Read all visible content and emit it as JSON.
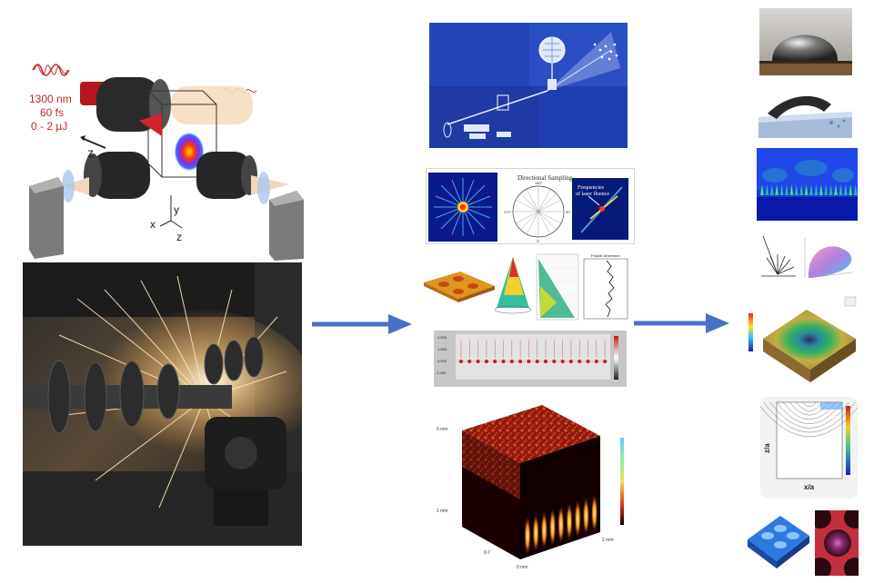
{
  "setup": {
    "laser_wavelength": "1300 nm",
    "pulse_duration": "60 fs",
    "pulse_energy": "0 - 2 µJ",
    "axis_z": "z",
    "axis_x": "x",
    "axis_y": "y",
    "axis_z2": "z"
  },
  "sampling": {
    "title": "Directional Sampling",
    "label_top": "180°",
    "label_left": "270°",
    "label_right": "90°",
    "label_bottom": "0°",
    "right_title_line1": "Frequencies",
    "right_title_line2": "of laser fluence"
  },
  "stats": {
    "fractal_title": "Fractal dimension"
  },
  "wave_plot": {
    "y_ticks": [
      "2.000",
      "1.000",
      "0.000",
      "-1.000"
    ]
  },
  "volume": {
    "top_label": "0 mm",
    "side_label": "1 mm",
    "bottom_label": "0.7",
    "right_label": "2 mm",
    "bottom_right_label": "0 mm"
  },
  "contour": {
    "ylabel": "z/a",
    "xlabel": "x/a"
  },
  "colors": {
    "arrow": "#4472c4",
    "blue_panel": "#1f3fb0",
    "laser_red": "#c0262c"
  }
}
